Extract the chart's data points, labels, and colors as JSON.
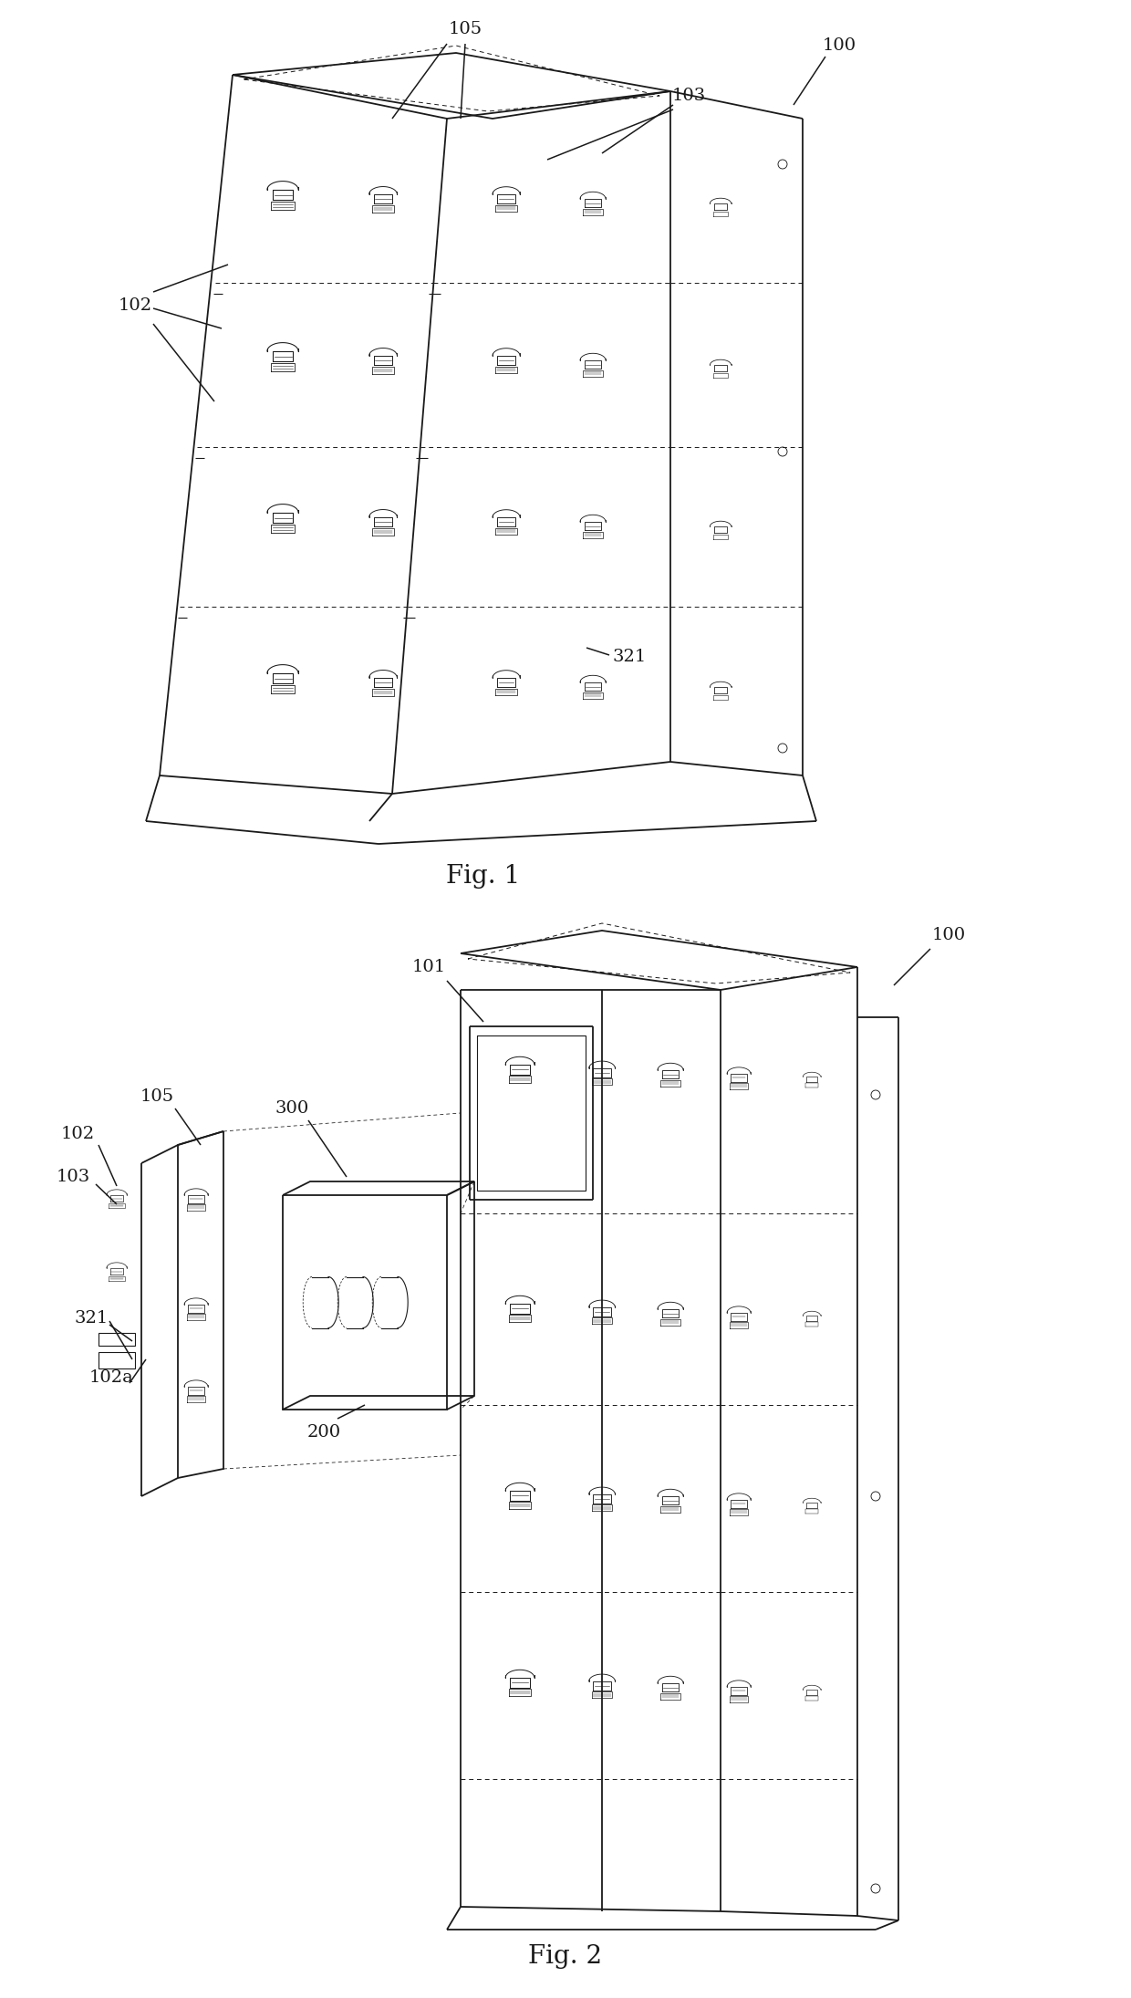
{
  "background_color": "#ffffff",
  "line_color": "#1a1a1a",
  "line_width": 1.3,
  "thin_lw": 0.8,
  "dashed_lw": 0.7,
  "annotation_fontsize": 14,
  "figlabel_fontsize": 20,
  "fig1_label": "Fig. 1",
  "fig2_label": "Fig. 2"
}
